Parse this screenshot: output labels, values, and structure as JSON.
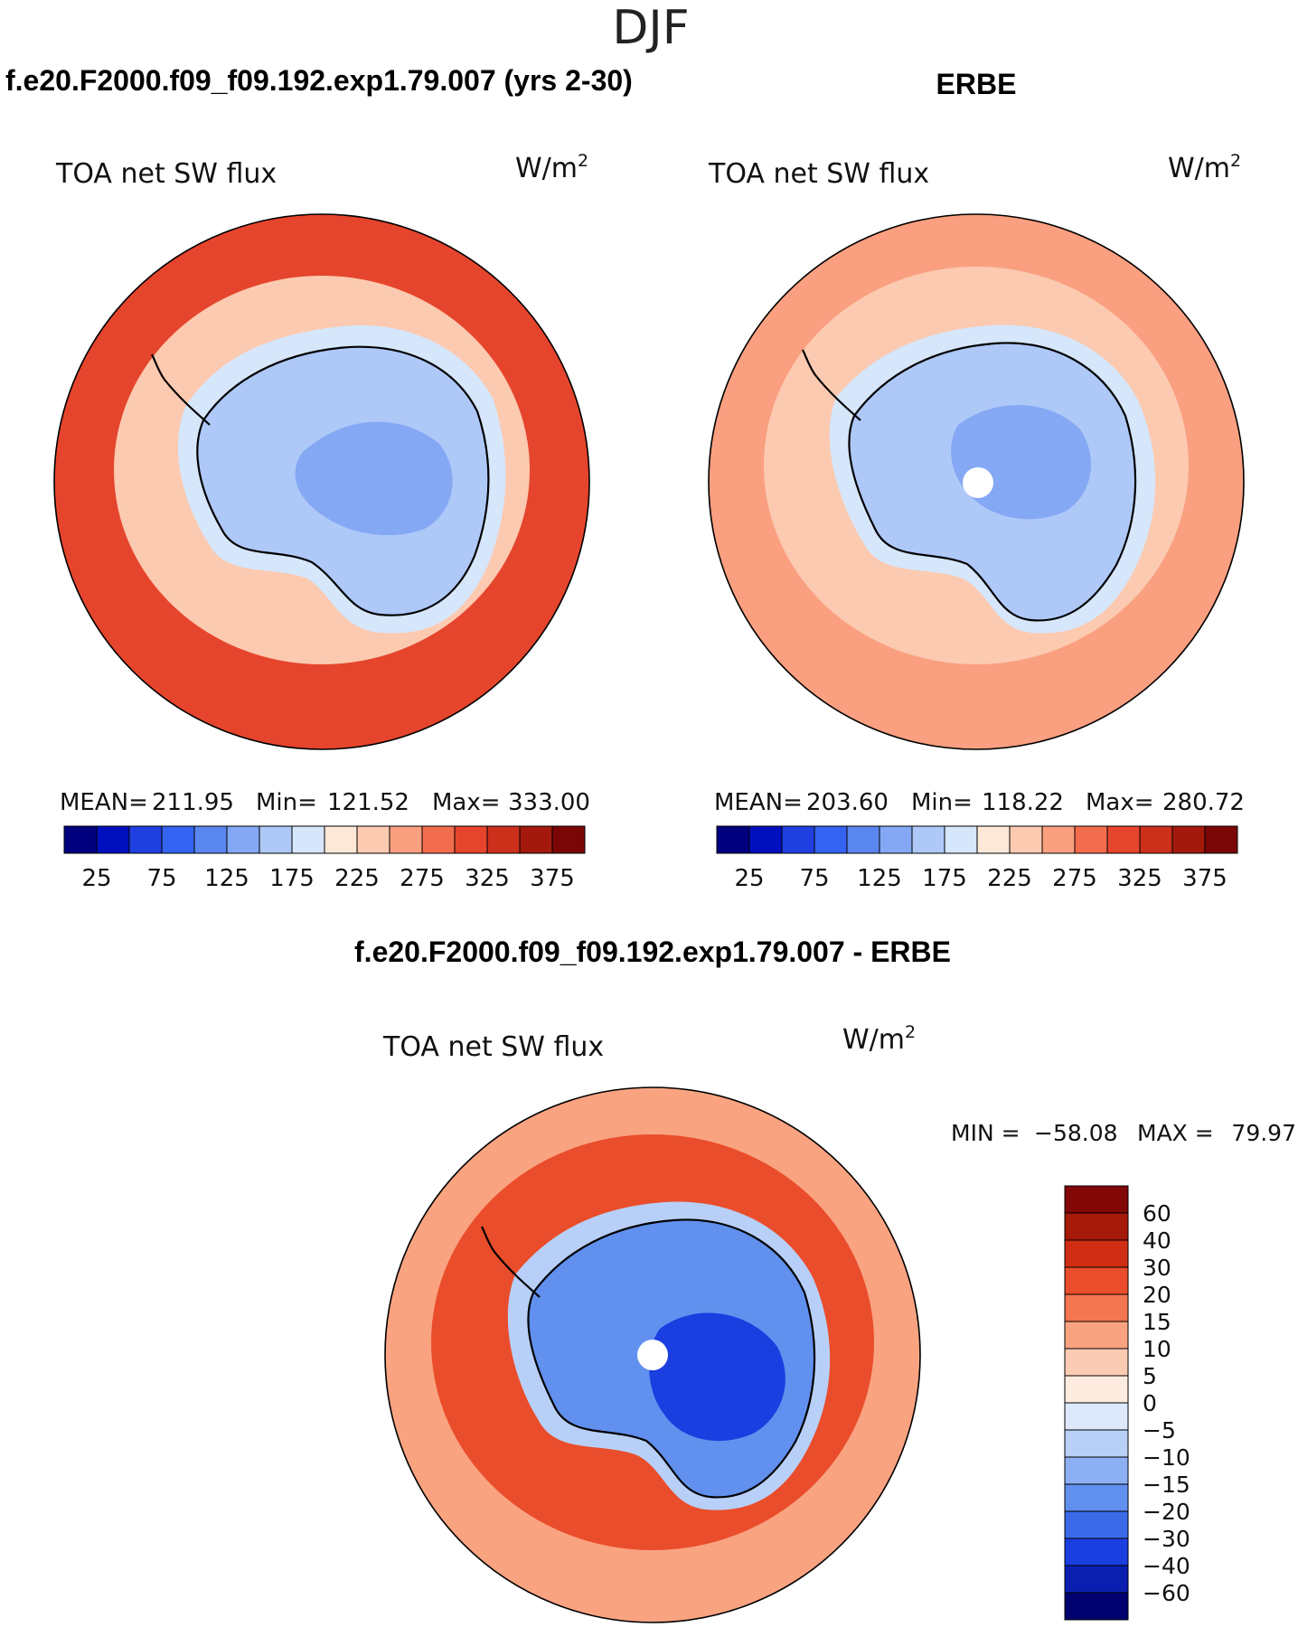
{
  "page": {
    "season": "DJF"
  },
  "colors": {
    "coast": "#000000",
    "raw_scale": [
      "#00007f",
      "#0010bf",
      "#1f3fe0",
      "#3363f0",
      "#5a86f0",
      "#84a8f4",
      "#aec8f8",
      "#d6e6fb",
      "#fde8d8",
      "#fccab0",
      "#fa9f80",
      "#f26d4e",
      "#e6452d",
      "#cc2f1a",
      "#a31a0d",
      "#7a0606"
    ],
    "diff_scale": [
      "#00006e",
      "#0a1fb0",
      "#1a3ee0",
      "#3a6ae8",
      "#6190ee",
      "#8cb0f3",
      "#b8d0f8",
      "#dde9fb",
      "#fdebe0",
      "#fccbb3",
      "#f9a381",
      "#f47650",
      "#ea4d2b",
      "#cf2e14",
      "#a61a0a",
      "#820707"
    ]
  },
  "chart_data": [
    {
      "type": "heatmap",
      "panel": "model",
      "title": "f.e20.F2000.f09_f09.192.exp1.79.007 (yrs 2-30)",
      "variable": "TOA net SW flux",
      "units_base": "W/m",
      "units_sup": "2",
      "projection": "south polar stereographic",
      "stats": {
        "mean_label": "MEAN=",
        "mean": "211.95",
        "min_label": "Min=",
        "min": "121.52",
        "max_label": "Max=",
        "max": "333.00"
      },
      "colorbar_ticks": [
        "25",
        "75",
        "125",
        "175",
        "225",
        "275",
        "325",
        "375"
      ],
      "zones": [
        {
          "name": "ocean-midlat",
          "value": 300
        },
        {
          "name": "ocean-sea-ice-ring",
          "value": 240
        },
        {
          "name": "antarctic-coast-margin",
          "value": 185
        },
        {
          "name": "antarctic-interior",
          "value": 150
        },
        {
          "name": "east-antarctic-plateau",
          "value": 130
        }
      ]
    },
    {
      "type": "heatmap",
      "panel": "obs",
      "title": "ERBE",
      "variable": "TOA net SW flux",
      "units_base": "W/m",
      "units_sup": "2",
      "projection": "south polar stereographic",
      "stats": {
        "mean_label": "MEAN=",
        "mean": "203.60",
        "min_label": "Min=",
        "min": "118.22",
        "max_label": "Max=",
        "max": "280.72"
      },
      "colorbar_ticks": [
        "25",
        "75",
        "125",
        "175",
        "225",
        "275",
        "325",
        "375"
      ],
      "zones": [
        {
          "name": "ocean-midlat",
          "value": 270
        },
        {
          "name": "ocean-sea-ice-ring",
          "value": 235
        },
        {
          "name": "antarctic-coast-margin",
          "value": 180
        },
        {
          "name": "antarctic-interior",
          "value": 150
        },
        {
          "name": "east-antarctic-plateau",
          "value": 135
        }
      ]
    },
    {
      "type": "heatmap",
      "panel": "difference",
      "title": "f.e20.F2000.f09_f09.192.exp1.79.007 - ERBE",
      "variable": "TOA net SW flux",
      "units_base": "W/m",
      "units_sup": "2",
      "projection": "south polar stereographic",
      "stats": {
        "min_label": "MIN =",
        "min": "−58.08",
        "max_label": "MAX =",
        "max": "79.97"
      },
      "colorbar_ticks": [
        "60",
        "40",
        "30",
        "20",
        "15",
        "10",
        "5",
        "0",
        "−5",
        "−10",
        "−15",
        "−20",
        "−30",
        "−40",
        "−60"
      ],
      "zones": [
        {
          "name": "ocean-midlat",
          "value": 12
        },
        {
          "name": "ocean-sea-ice-ring",
          "value": 25
        },
        {
          "name": "antarctic-coast-margin",
          "value": -8
        },
        {
          "name": "antarctic-interior",
          "value": -18
        },
        {
          "name": "east-antarctic-plateau",
          "value": -35
        }
      ]
    }
  ]
}
